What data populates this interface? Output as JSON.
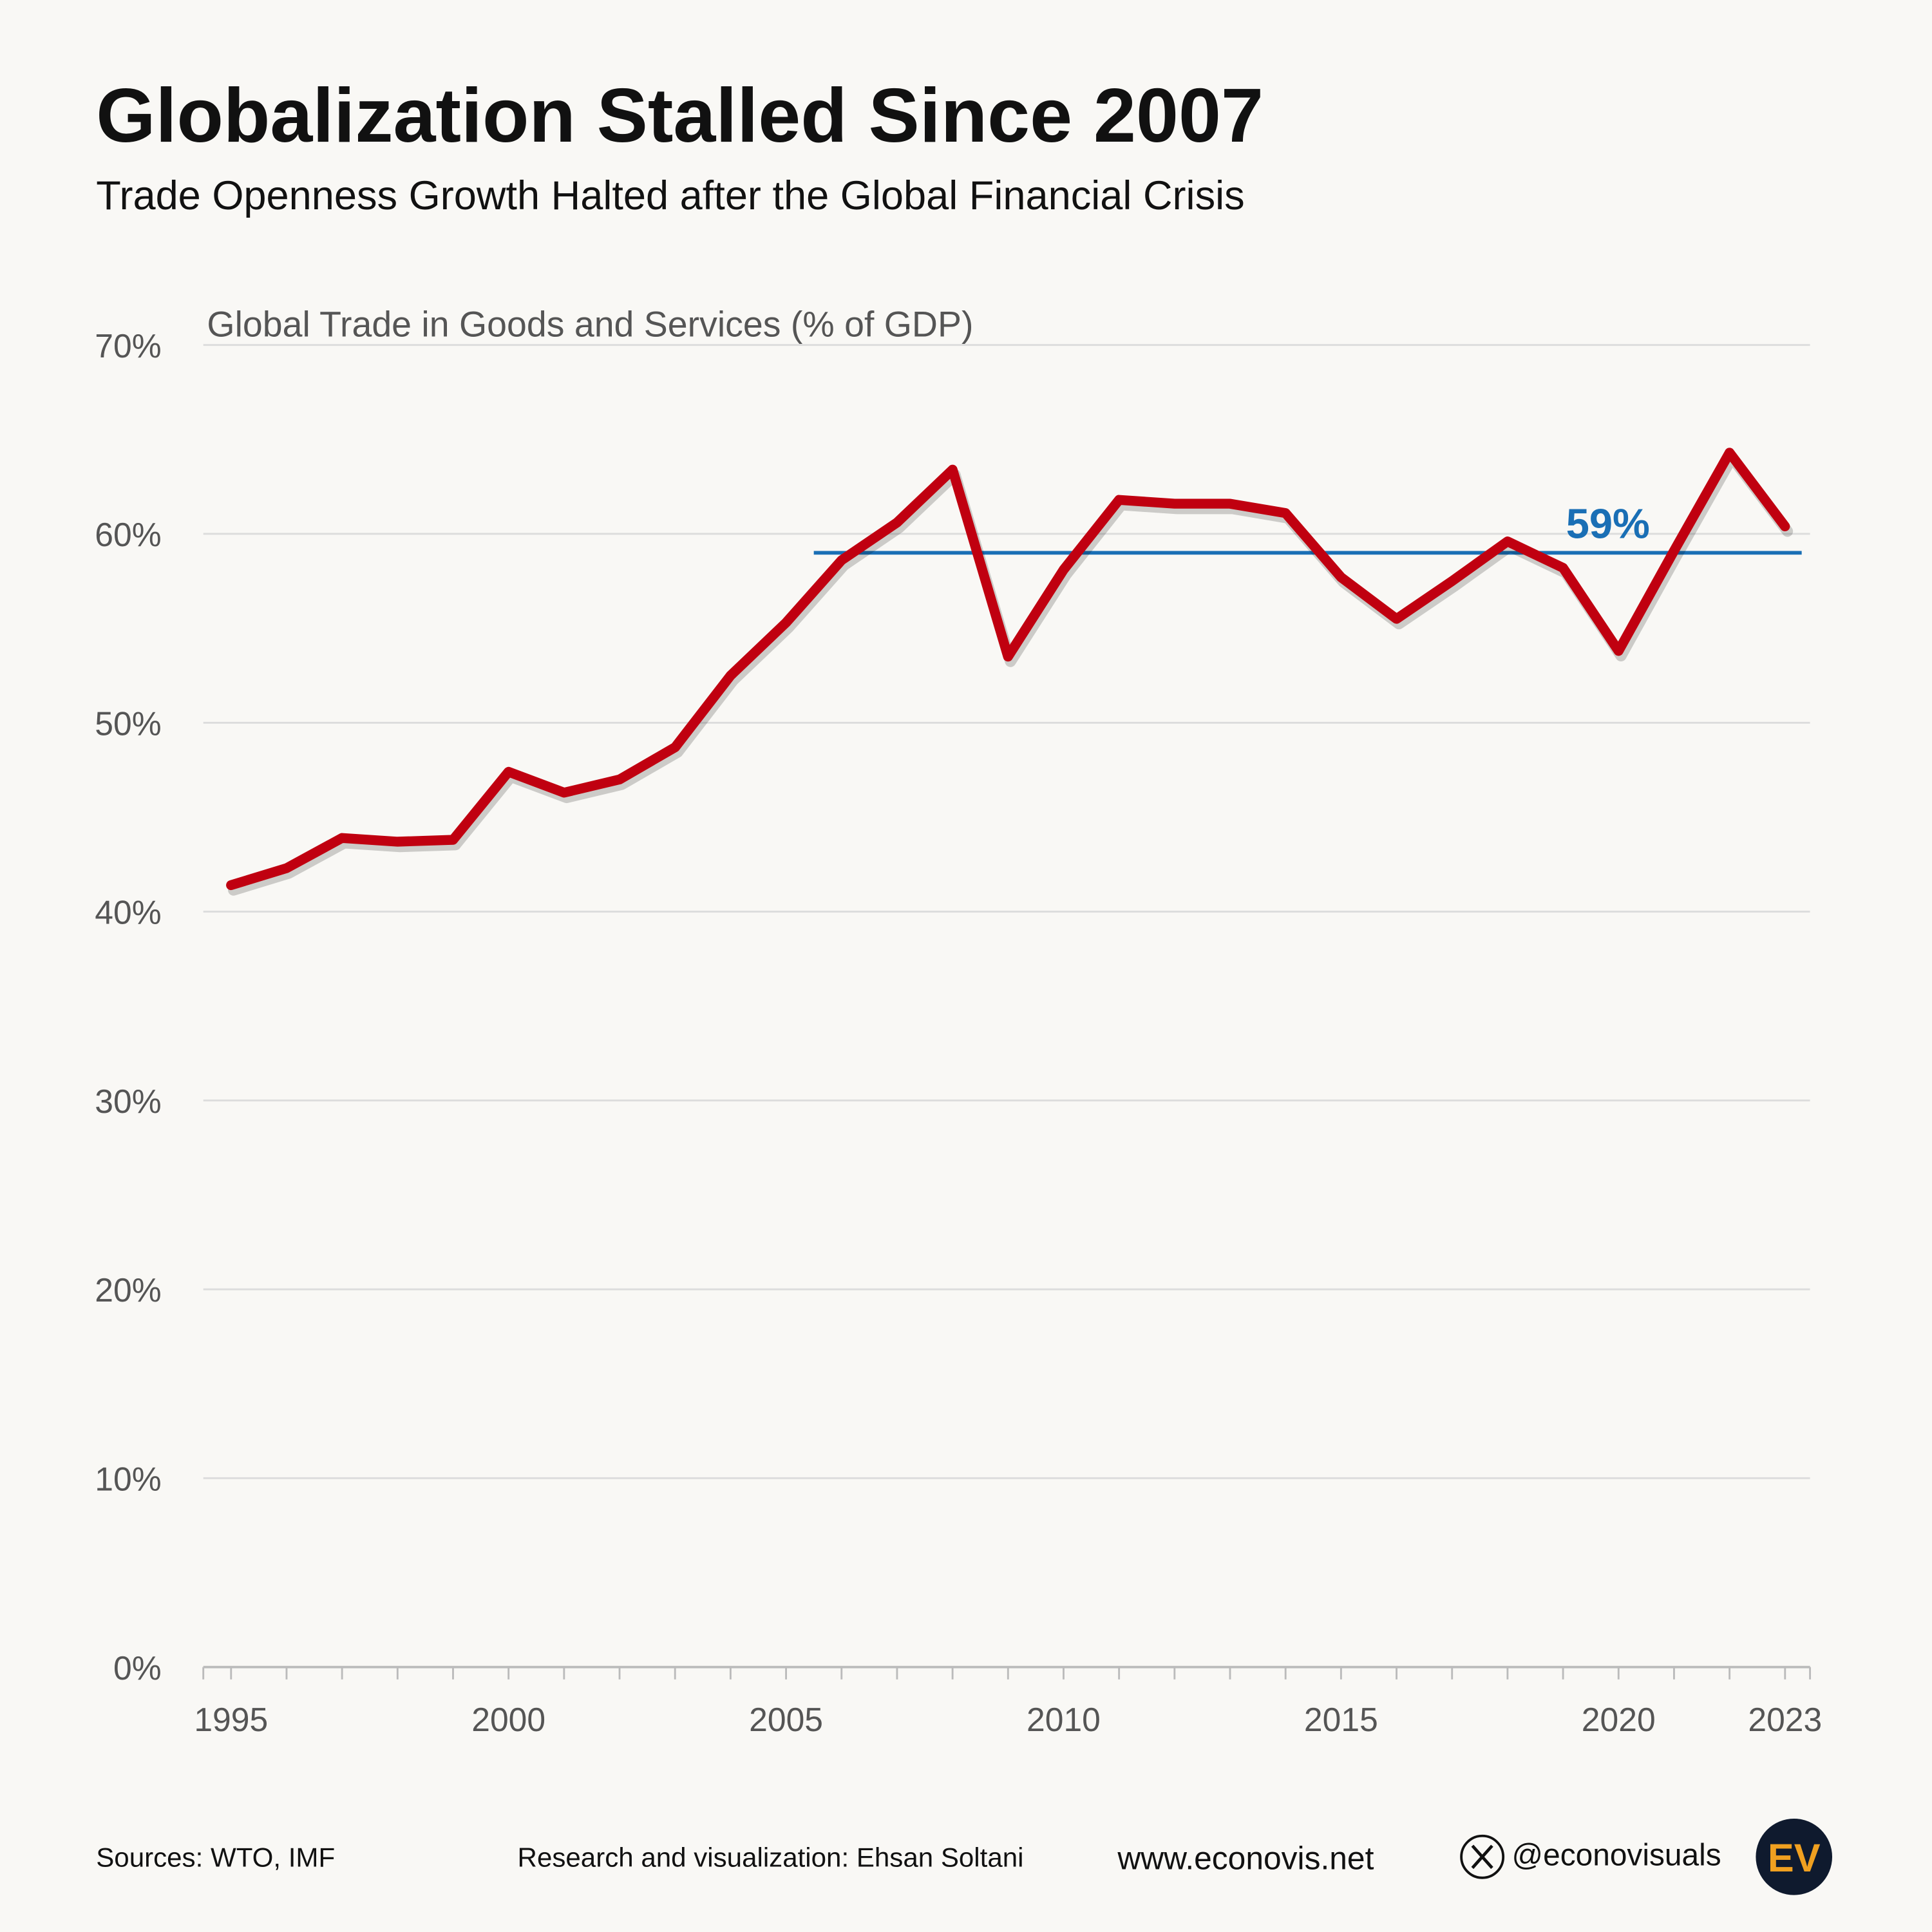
{
  "chart_data": {
    "type": "line",
    "title": "Globalization Stalled Since 2007",
    "subtitle": "Trade Openness Growth Halted after the Global Financial Crisis",
    "ylabel": "Global Trade in Goods and Services (% of GDP)",
    "x": [
      1995,
      1996,
      1997,
      1998,
      1999,
      2000,
      2001,
      2002,
      2003,
      2004,
      2005,
      2006,
      2007,
      2008,
      2009,
      2010,
      2011,
      2012,
      2013,
      2014,
      2015,
      2016,
      2017,
      2018,
      2019,
      2020,
      2021,
      2022,
      2023
    ],
    "series": [
      {
        "name": "Global Trade in Goods and Services (% of GDP)",
        "color": "#c00010",
        "values": [
          41.4,
          42.3,
          43.9,
          43.7,
          43.8,
          47.4,
          46.3,
          47.0,
          48.7,
          52.5,
          55.3,
          58.6,
          60.6,
          63.4,
          53.5,
          58.1,
          61.8,
          61.6,
          61.6,
          61.1,
          57.7,
          55.5,
          57.5,
          59.6,
          58.2,
          53.8,
          59.1,
          64.3,
          60.4
        ]
      }
    ],
    "xlim": [
      1994.5,
      2023.45
    ],
    "xticks": [
      1995,
      2000,
      2005,
      2010,
      2015,
      2020,
      2023
    ],
    "ylim": [
      0,
      70
    ],
    "yticks": [
      {
        "value": 0,
        "label": "0%"
      },
      {
        "value": 10,
        "label": "10%"
      },
      {
        "value": 20,
        "label": "20%"
      },
      {
        "value": 30,
        "label": "30%"
      },
      {
        "value": 40,
        "label": "40%"
      },
      {
        "value": 50,
        "label": "50%"
      },
      {
        "value": 60,
        "label": "60%"
      },
      {
        "value": 70,
        "label": "70%"
      }
    ],
    "grid": true,
    "reference_line": {
      "value": 59,
      "label": "59%",
      "x": [
        2005.5,
        2023.3
      ],
      "color": "#1a6fb5"
    },
    "footer": {
      "sources": "Sources: WTO, IMF",
      "credit": "Research and visualization: Ehsan Soltani",
      "website": "www.econovis.net",
      "handle": "@econovisuals",
      "logo": "EV"
    }
  }
}
